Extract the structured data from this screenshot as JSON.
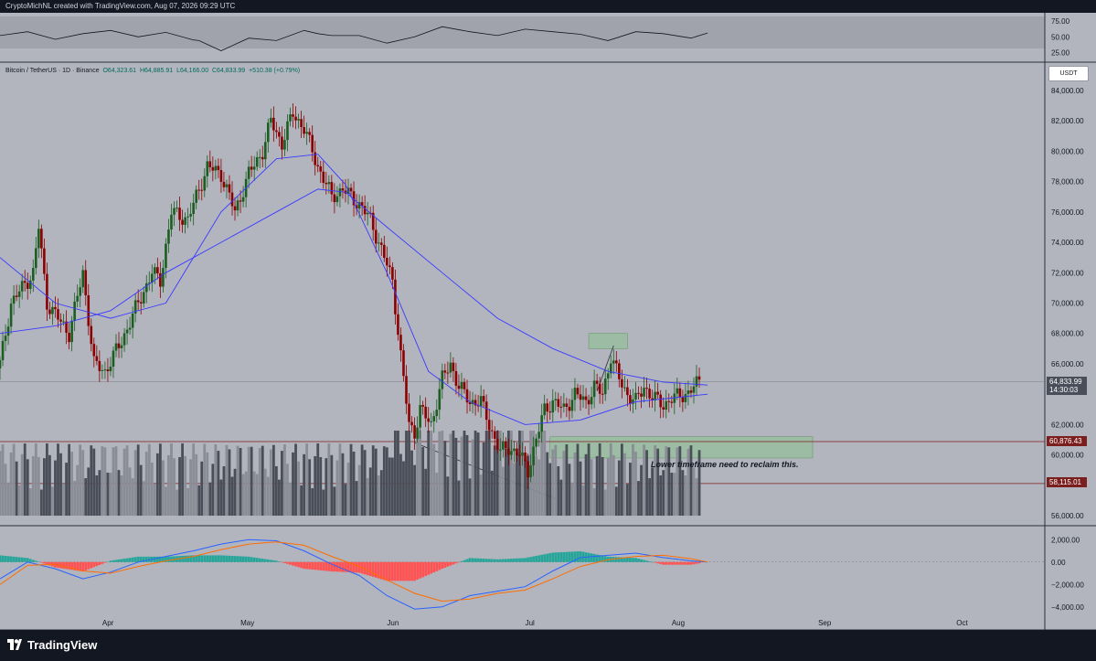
{
  "header": {
    "credit": "CryptoMichNL created with TradingView.com, Aug 07, 2026 09:29 UTC"
  },
  "legend": {
    "symbol": "Bitcoin / TetherUS · 1D · Binance",
    "open": "O64,323.61",
    "high": "H64,885.91",
    "low": "L64,166.00",
    "close": "C64,833.99",
    "change": "+510.38 (+0.79%)"
  },
  "price_unit": "USDT",
  "annotation": "Lower timeframe need to reclaim this.",
  "price_tags": {
    "last": "64,833.99",
    "countdown": "14:30:03",
    "level_high": "60,876.43",
    "level_low": "58,115.01"
  },
  "footer": {
    "brand": "TradingView"
  },
  "colors": {
    "up": "#1b5e20",
    "down": "#8b0000",
    "ma": "#3a3aff",
    "macd": "#2962ff",
    "signal": "#ff6d00",
    "zone": "#81c784"
  },
  "chart_data": [
    {
      "type": "line",
      "panel": "oscillator",
      "yticks": [
        75,
        50,
        25
      ],
      "ytick_labels": [
        "75.00",
        "50.00",
        "25.00"
      ],
      "ylim": [
        10,
        85
      ],
      "x_index": [
        0,
        10,
        20,
        30,
        40,
        50,
        60,
        70,
        72,
        80,
        90,
        100,
        110,
        115,
        120,
        130,
        140,
        150,
        160,
        170,
        180,
        190,
        200,
        210,
        220,
        230,
        240,
        250,
        256
      ],
      "values": [
        52,
        58,
        46,
        55,
        60,
        50,
        57,
        45,
        44,
        28,
        48,
        44,
        60,
        55,
        52,
        52,
        40,
        50,
        66,
        58,
        52,
        62,
        58,
        54,
        44,
        58,
        55,
        48,
        56
      ]
    },
    {
      "type": "candlestick",
      "panel": "price",
      "title": "Bitcoin / TetherUS · 1D · Binance",
      "y_ticks": [
        84000,
        82000,
        80000,
        78000,
        76000,
        74000,
        72000,
        70000,
        68000,
        66000,
        62000,
        60000,
        56000
      ],
      "y_tick_labels": [
        "84,000.00",
        "82,000.00",
        "80,000.00",
        "78,000.00",
        "76,000.00",
        "74,000.00",
        "72,000.00",
        "70,000.00",
        "68,000.00",
        "66,000.00",
        "62,000.00",
        "60,000.00",
        "56,000.00"
      ],
      "ylim": [
        55400,
        84900
      ],
      "x_labels": [
        {
          "i": 39,
          "label": "Apr"
        },
        {
          "i": 89,
          "label": "May"
        },
        {
          "i": 142,
          "label": "Jun"
        },
        {
          "i": 192,
          "label": "Jul"
        },
        {
          "i": 245,
          "label": "Aug"
        },
        {
          "i": 298,
          "label": "Sep"
        },
        {
          "i": 348,
          "label": "Oct"
        }
      ],
      "x_range": [
        0,
        378
      ],
      "anchors": [
        [
          0,
          66000
        ],
        [
          4,
          70000
        ],
        [
          12,
          72000
        ],
        [
          14,
          75000
        ],
        [
          17,
          70000
        ],
        [
          25,
          68000
        ],
        [
          30,
          72000
        ],
        [
          34,
          66000
        ],
        [
          38,
          65500
        ],
        [
          44,
          67500
        ],
        [
          50,
          70000
        ],
        [
          55,
          72000
        ],
        [
          58,
          71500
        ],
        [
          62,
          76000
        ],
        [
          68,
          75500
        ],
        [
          75,
          79000
        ],
        [
          80,
          78500
        ],
        [
          85,
          76000
        ],
        [
          90,
          78500
        ],
        [
          95,
          80000
        ],
        [
          98,
          82000
        ],
        [
          102,
          80500
        ],
        [
          106,
          82500
        ],
        [
          110,
          81500
        ],
        [
          115,
          79000
        ],
        [
          120,
          77000
        ],
        [
          124,
          77500
        ],
        [
          130,
          76500
        ],
        [
          134,
          75500
        ],
        [
          138,
          73500
        ],
        [
          142,
          71500
        ],
        [
          145,
          66500
        ],
        [
          148,
          62000
        ],
        [
          150,
          61500
        ],
        [
          152,
          63000
        ],
        [
          156,
          62000
        ],
        [
          160,
          65000
        ],
        [
          163,
          66000
        ],
        [
          166,
          64500
        ],
        [
          170,
          63500
        ],
        [
          174,
          63500
        ],
        [
          178,
          61500
        ],
        [
          181,
          60200
        ],
        [
          184,
          60500
        ],
        [
          188,
          60000
        ],
        [
          191,
          59000
        ],
        [
          194,
          61000
        ],
        [
          197,
          63000
        ],
        [
          200,
          63500
        ],
        [
          204,
          63000
        ],
        [
          208,
          64000
        ],
        [
          212,
          63500
        ],
        [
          215,
          64500
        ],
        [
          218,
          64000
        ],
        [
          221,
          66500
        ],
        [
          224,
          65000
        ],
        [
          227,
          64000
        ],
        [
          230,
          63500
        ],
        [
          233,
          64500
        ],
        [
          236,
          63800
        ],
        [
          240,
          63300
        ],
        [
          243,
          63700
        ],
        [
          246,
          63900
        ],
        [
          249,
          64100
        ],
        [
          253,
          64834
        ]
      ],
      "ma_fast": [
        [
          0,
          73000
        ],
        [
          20,
          70000
        ],
        [
          40,
          69000
        ],
        [
          60,
          70000
        ],
        [
          80,
          76000
        ],
        [
          100,
          79500
        ],
        [
          115,
          79800
        ],
        [
          125,
          77800
        ],
        [
          140,
          72000
        ],
        [
          155,
          65500
        ],
        [
          170,
          63500
        ],
        [
          190,
          62000
        ],
        [
          210,
          62300
        ],
        [
          230,
          63500
        ],
        [
          256,
          64000
        ]
      ],
      "ma_slow": [
        [
          0,
          68000
        ],
        [
          20,
          68500
        ],
        [
          40,
          69500
        ],
        [
          60,
          72000
        ],
        [
          80,
          74000
        ],
        [
          100,
          76000
        ],
        [
          115,
          77500
        ],
        [
          125,
          77300
        ],
        [
          140,
          75000
        ],
        [
          160,
          72000
        ],
        [
          180,
          69000
        ],
        [
          200,
          67000
        ],
        [
          220,
          65500
        ],
        [
          240,
          64800
        ],
        [
          256,
          64600
        ]
      ],
      "zones": [
        {
          "label": "resistance-target",
          "i0": 213,
          "i1": 227,
          "y0": 67000,
          "y1": 68000
        },
        {
          "label": "reclaim-zone",
          "i0": 199,
          "i1": 294,
          "y0": 59800,
          "y1": 61200
        }
      ],
      "levels": [
        60876.43,
        58115.01,
        64833.99
      ],
      "volume": {
        "baseline": 56000,
        "max_height_price_units": 5600
      }
    },
    {
      "type": "bar",
      "panel": "macd",
      "yticks": [
        2000,
        0,
        -2000,
        -4000
      ],
      "ytick_labels": [
        "2,000.00",
        "0.00",
        "−2,000.00",
        "−4,000.00"
      ],
      "ylim": [
        -5000,
        3000
      ],
      "series": [
        {
          "name": "",
          "kind": "line",
          "x_index": [
            0,
            10,
            20,
            30,
            40,
            50,
            60,
            70,
            80,
            90,
            100,
            110,
            120,
            130,
            140,
            150,
            160,
            170,
            180,
            190,
            200,
            210,
            220,
            230,
            240,
            250,
            256
          ],
          "values": [
            -1500,
            0,
            -600,
            -1500,
            -900,
            0,
            500,
            1000,
            1600,
            2000,
            1900,
            1000,
            -200,
            -1200,
            -3000,
            -4200,
            -4000,
            -3000,
            -2600,
            -2200,
            -800,
            400,
            600,
            800,
            400,
            100,
            0
          ]
        },
        {
          "name": "",
          "kind": "line",
          "x_index": [
            0,
            10,
            20,
            30,
            40,
            50,
            60,
            70,
            80,
            90,
            100,
            110,
            120,
            130,
            140,
            150,
            160,
            170,
            180,
            190,
            200,
            210,
            220,
            230,
            240,
            250,
            256
          ],
          "values": [
            -2000,
            -300,
            -200,
            -800,
            -1000,
            -400,
            100,
            500,
            1100,
            1600,
            1800,
            1500,
            500,
            -400,
            -1600,
            -2800,
            -3500,
            -3300,
            -2800,
            -2500,
            -1500,
            -400,
            200,
            500,
            600,
            300,
            0
          ]
        }
      ]
    }
  ]
}
